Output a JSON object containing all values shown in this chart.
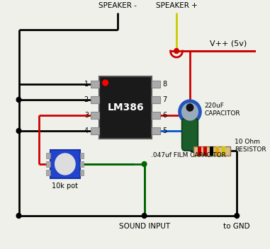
{
  "bg_color": "#f0f0eb",
  "wire_black": "#000000",
  "wire_red": "#cc0000",
  "wire_blue": "#0055cc",
  "wire_green": "#006600",
  "wire_yellow": "#cccc00",
  "ic_body": "#1a1a1a",
  "speaker_neg_label": "SPEAKER -",
  "speaker_pos_label": "SPEAKER +",
  "vpp_label": "V++ (5v)",
  "cap_label": "220uF\nCAPACITOR",
  "res_label": "10 Ohm\nRESISTOR",
  "film_cap_label": ".047uf FILM CAPACITOR",
  "pot_label": "10k pot",
  "sound_input_label": "SOUND INPUT",
  "gnd_label": "to GND",
  "ic_label": "LM386",
  "res_bands": [
    "#cc0000",
    "#cc0000",
    "#000000",
    "#ddaa00",
    "#cccc00"
  ]
}
